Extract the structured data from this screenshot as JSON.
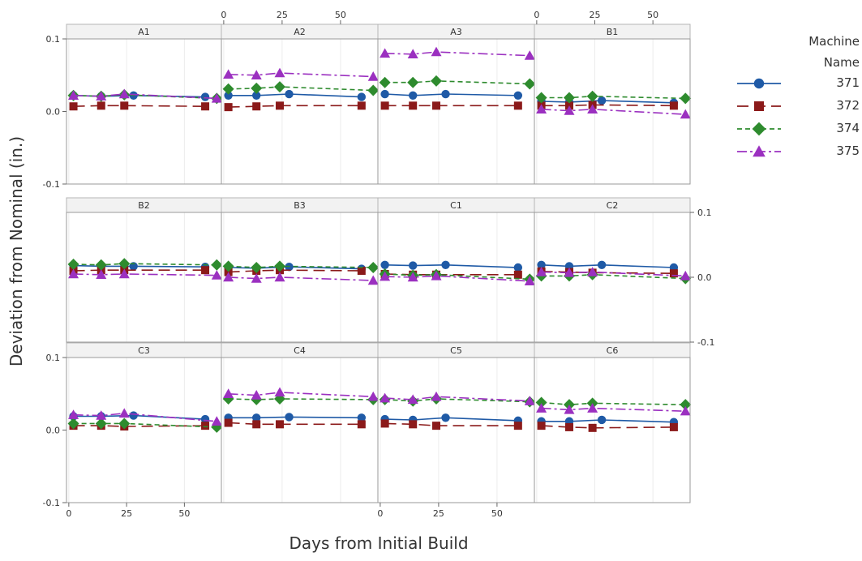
{
  "chart_data": {
    "type": "line",
    "facet_layout": {
      "rows": 3,
      "cols": 4
    },
    "xlabel": "Days from Initial Build",
    "ylabel": "Deviation from Nominal (in.)",
    "xlim": [
      -1,
      66
    ],
    "ylim": [
      -0.1,
      0.1
    ],
    "xticks": [
      0,
      25,
      50
    ],
    "yticks": [
      -0.1,
      0.0,
      0.1
    ],
    "ytick_labels": [
      "-0.1",
      "0.0",
      "0.1"
    ],
    "grid": true,
    "legend": {
      "title_lines": [
        "Machine",
        "Name"
      ],
      "placement": "right",
      "items": [
        {
          "name": "371",
          "color": "#1f5aa6",
          "marker": "circle",
          "dash": "solid"
        },
        {
          "name": "372",
          "color": "#8b1a1a",
          "marker": "square",
          "dash": "long-dash"
        },
        {
          "name": "374",
          "color": "#2e8b2e",
          "marker": "diamond",
          "dash": "dash"
        },
        {
          "name": "375",
          "color": "#9b30c0",
          "marker": "triangle",
          "dash": "dash-dot"
        }
      ]
    },
    "panels": [
      {
        "name": "A1",
        "series": [
          {
            "name": "371",
            "x": [
              2,
              14,
              28,
              59
            ],
            "y": [
              0.022,
              0.021,
              0.022,
              0.02
            ]
          },
          {
            "name": "372",
            "x": [
              2,
              14,
              24,
              59
            ],
            "y": [
              0.007,
              0.008,
              0.008,
              0.007
            ]
          },
          {
            "name": "374",
            "x": [
              2,
              14,
              24,
              64
            ],
            "y": [
              0.022,
              0.021,
              0.023,
              0.018
            ]
          },
          {
            "name": "375",
            "x": [
              2,
              14,
              24,
              64
            ],
            "y": [
              0.022,
              0.021,
              0.024,
              0.018
            ]
          }
        ]
      },
      {
        "name": "A2",
        "series": [
          {
            "name": "371",
            "x": [
              2,
              14,
              28,
              59
            ],
            "y": [
              0.022,
              0.022,
              0.024,
              0.02
            ]
          },
          {
            "name": "372",
            "x": [
              2,
              14,
              24,
              59
            ],
            "y": [
              0.006,
              0.007,
              0.008,
              0.008
            ]
          },
          {
            "name": "374",
            "x": [
              2,
              14,
              24,
              64
            ],
            "y": [
              0.031,
              0.032,
              0.034,
              0.029
            ]
          },
          {
            "name": "375",
            "x": [
              2,
              14,
              24,
              64
            ],
            "y": [
              0.051,
              0.05,
              0.053,
              0.048
            ]
          }
        ]
      },
      {
        "name": "A3",
        "series": [
          {
            "name": "371",
            "x": [
              2,
              14,
              28,
              59
            ],
            "y": [
              0.024,
              0.022,
              0.024,
              0.022
            ]
          },
          {
            "name": "372",
            "x": [
              2,
              14,
              24,
              59
            ],
            "y": [
              0.008,
              0.008,
              0.008,
              0.008
            ]
          },
          {
            "name": "374",
            "x": [
              2,
              14,
              24,
              64
            ],
            "y": [
              0.04,
              0.04,
              0.042,
              0.038
            ]
          },
          {
            "name": "375",
            "x": [
              2,
              14,
              24,
              64
            ],
            "y": [
              0.08,
              0.079,
              0.082,
              0.077
            ]
          }
        ]
      },
      {
        "name": "B1",
        "series": [
          {
            "name": "371",
            "x": [
              2,
              14,
              28,
              59
            ],
            "y": [
              0.014,
              0.013,
              0.015,
              0.012
            ]
          },
          {
            "name": "372",
            "x": [
              2,
              14,
              24,
              59
            ],
            "y": [
              0.008,
              0.008,
              0.009,
              0.008
            ]
          },
          {
            "name": "374",
            "x": [
              2,
              14,
              24,
              64
            ],
            "y": [
              0.019,
              0.019,
              0.021,
              0.018
            ]
          },
          {
            "name": "375",
            "x": [
              2,
              14,
              24,
              64
            ],
            "y": [
              0.003,
              0.001,
              0.003,
              -0.004
            ]
          }
        ]
      },
      {
        "name": "B2",
        "series": [
          {
            "name": "371",
            "x": [
              2,
              14,
              28,
              59
            ],
            "y": [
              0.018,
              0.017,
              0.017,
              0.016
            ]
          },
          {
            "name": "372",
            "x": [
              2,
              14,
              24,
              59
            ],
            "y": [
              0.01,
              0.011,
              0.011,
              0.011
            ]
          },
          {
            "name": "374",
            "x": [
              2,
              14,
              24,
              64
            ],
            "y": [
              0.02,
              0.019,
              0.021,
              0.019
            ]
          },
          {
            "name": "375",
            "x": [
              2,
              14,
              24,
              64
            ],
            "y": [
              0.005,
              0.004,
              0.005,
              0.003
            ]
          }
        ]
      },
      {
        "name": "B3",
        "series": [
          {
            "name": "371",
            "x": [
              2,
              14,
              28,
              59
            ],
            "y": [
              0.015,
              0.014,
              0.016,
              0.013
            ]
          },
          {
            "name": "372",
            "x": [
              2,
              14,
              24,
              59
            ],
            "y": [
              0.008,
              0.01,
              0.011,
              0.01
            ]
          },
          {
            "name": "374",
            "x": [
              2,
              14,
              24,
              64
            ],
            "y": [
              0.017,
              0.015,
              0.017,
              0.015
            ]
          },
          {
            "name": "375",
            "x": [
              2,
              14,
              24,
              64
            ],
            "y": [
              0.0,
              -0.002,
              0.0,
              -0.005
            ]
          }
        ]
      },
      {
        "name": "C1",
        "series": [
          {
            "name": "371",
            "x": [
              2,
              14,
              28,
              59
            ],
            "y": [
              0.019,
              0.018,
              0.019,
              0.015
            ]
          },
          {
            "name": "372",
            "x": [
              2,
              14,
              24,
              59
            ],
            "y": [
              0.005,
              0.004,
              0.004,
              0.004
            ]
          },
          {
            "name": "374",
            "x": [
              2,
              14,
              24,
              64
            ],
            "y": [
              0.005,
              0.003,
              0.004,
              -0.003
            ]
          },
          {
            "name": "375",
            "x": [
              2,
              14,
              24,
              64
            ],
            "y": [
              0.001,
              0.0,
              0.002,
              -0.006
            ]
          }
        ]
      },
      {
        "name": "C2",
        "series": [
          {
            "name": "371",
            "x": [
              2,
              14,
              28,
              59
            ],
            "y": [
              0.019,
              0.017,
              0.019,
              0.015
            ]
          },
          {
            "name": "372",
            "x": [
              2,
              14,
              24,
              59
            ],
            "y": [
              0.009,
              0.008,
              0.007,
              0.006
            ]
          },
          {
            "name": "374",
            "x": [
              2,
              14,
              24,
              64
            ],
            "y": [
              0.002,
              0.002,
              0.004,
              -0.002
            ]
          },
          {
            "name": "375",
            "x": [
              2,
              14,
              24,
              64
            ],
            "y": [
              0.008,
              0.007,
              0.008,
              0.002
            ]
          }
        ]
      },
      {
        "name": "C3",
        "series": [
          {
            "name": "371",
            "x": [
              2,
              14,
              28,
              59
            ],
            "y": [
              0.019,
              0.019,
              0.02,
              0.015
            ]
          },
          {
            "name": "372",
            "x": [
              2,
              14,
              24,
              59
            ],
            "y": [
              0.006,
              0.006,
              0.005,
              0.006
            ]
          },
          {
            "name": "374",
            "x": [
              2,
              14,
              24,
              64
            ],
            "y": [
              0.009,
              0.009,
              0.009,
              0.004
            ]
          },
          {
            "name": "375",
            "x": [
              2,
              14,
              24,
              64
            ],
            "y": [
              0.021,
              0.02,
              0.023,
              0.012
            ]
          }
        ]
      },
      {
        "name": "C4",
        "series": [
          {
            "name": "371",
            "x": [
              2,
              14,
              28,
              59
            ],
            "y": [
              0.017,
              0.017,
              0.018,
              0.017
            ]
          },
          {
            "name": "372",
            "x": [
              2,
              14,
              24,
              59
            ],
            "y": [
              0.01,
              0.008,
              0.008,
              0.008
            ]
          },
          {
            "name": "374",
            "x": [
              2,
              14,
              24,
              64
            ],
            "y": [
              0.043,
              0.042,
              0.043,
              0.042
            ]
          },
          {
            "name": "375",
            "x": [
              2,
              14,
              24,
              64
            ],
            "y": [
              0.05,
              0.048,
              0.052,
              0.046
            ]
          }
        ]
      },
      {
        "name": "C5",
        "series": [
          {
            "name": "371",
            "x": [
              2,
              14,
              28,
              59
            ],
            "y": [
              0.015,
              0.014,
              0.017,
              0.013
            ]
          },
          {
            "name": "372",
            "x": [
              2,
              14,
              24,
              59
            ],
            "y": [
              0.009,
              0.008,
              0.006,
              0.006
            ]
          },
          {
            "name": "374",
            "x": [
              2,
              14,
              24,
              64
            ],
            "y": [
              0.042,
              0.04,
              0.043,
              0.039
            ]
          },
          {
            "name": "375",
            "x": [
              2,
              14,
              24,
              64
            ],
            "y": [
              0.044,
              0.042,
              0.046,
              0.04
            ]
          }
        ]
      },
      {
        "name": "C6",
        "series": [
          {
            "name": "371",
            "x": [
              2,
              14,
              28,
              59
            ],
            "y": [
              0.012,
              0.012,
              0.014,
              0.011
            ]
          },
          {
            "name": "372",
            "x": [
              2,
              14,
              24,
              59
            ],
            "y": [
              0.006,
              0.004,
              0.003,
              0.004
            ]
          },
          {
            "name": "374",
            "x": [
              2,
              14,
              24,
              64
            ],
            "y": [
              0.038,
              0.035,
              0.037,
              0.035
            ]
          },
          {
            "name": "375",
            "x": [
              2,
              14,
              24,
              64
            ],
            "y": [
              0.03,
              0.028,
              0.03,
              0.026
            ]
          }
        ]
      }
    ]
  }
}
